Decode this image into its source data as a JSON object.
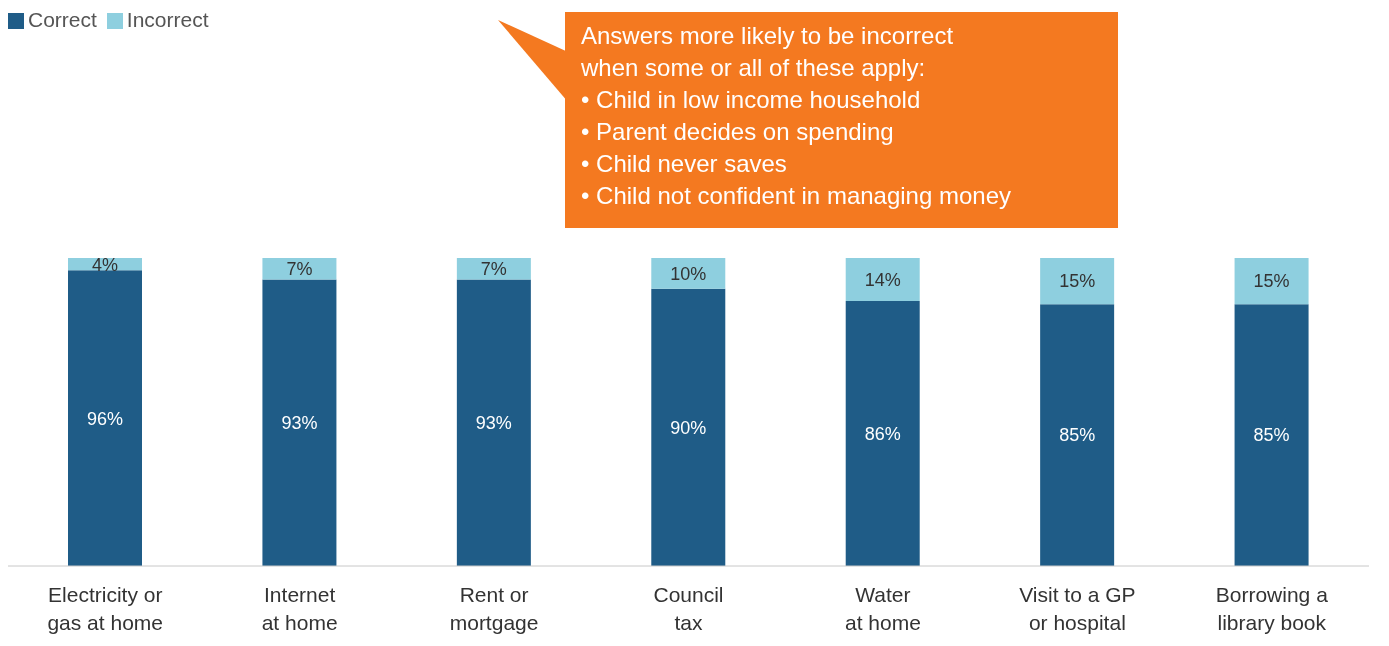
{
  "chart_data": {
    "type": "bar",
    "stacked": true,
    "legend": "top left",
    "categories": [
      "Electricity or\ngas at home",
      "Internet\nat home",
      "Rent or\nmortgage",
      "Council\ntax",
      "Water\nat home",
      "Visit to a GP\nor hospital",
      "Borrowing a\nlibrary book"
    ],
    "series": [
      {
        "name": "Correct",
        "color": "#1f5c87",
        "values": [
          96,
          93,
          93,
          90,
          86,
          85,
          85
        ],
        "value_labels": [
          "96%",
          "93%",
          "93%",
          "90%",
          "86%",
          "85%",
          "85%"
        ]
      },
      {
        "name": "Incorrect",
        "color": "#8ecfdf",
        "values": [
          4,
          7,
          7,
          10,
          14,
          15,
          15
        ],
        "value_labels": [
          "4%",
          "7%",
          "7%",
          "10%",
          "14%",
          "15%",
          "15%"
        ]
      }
    ],
    "annotations": [
      "Answers more likely to be incorrect\nwhen some or all of these apply:\n• Child in low income household\n• Parent decides on spending\n• Child never saves\n• Child not confident in managing money"
    ]
  }
}
